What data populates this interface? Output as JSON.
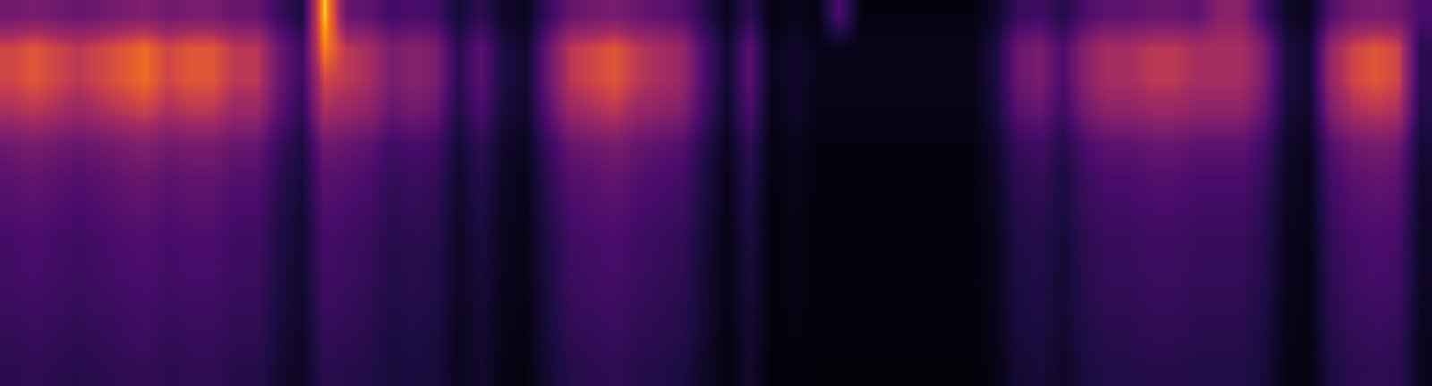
{
  "chart_data": {
    "type": "heatmap",
    "tick_labels": false,
    "zlim": [
      0,
      100
    ],
    "z": [
      [
        42,
        45,
        42,
        39,
        42,
        45,
        48,
        42,
        45,
        45,
        39,
        39,
        24,
        15,
        95,
        39,
        36,
        27,
        30,
        27,
        12,
        21,
        9,
        6,
        24,
        39,
        42,
        45,
        39,
        36,
        33,
        18,
        6,
        21,
        3,
        6,
        3,
        30,
        3,
        3,
        3,
        3,
        3,
        3,
        9,
        24,
        27,
        18,
        30,
        36,
        36,
        39,
        39,
        36,
        50,
        50,
        27,
        9,
        6,
        33,
        42,
        45,
        42,
        30
      ],
      [
        70,
        75,
        70,
        65,
        70,
        75,
        80,
        70,
        75,
        75,
        65,
        65,
        40,
        25,
        85,
        65,
        60,
        45,
        50,
        45,
        20,
        35,
        15,
        10,
        40,
        65,
        70,
        75,
        65,
        60,
        55,
        30,
        10,
        35,
        5,
        10,
        5,
        5,
        5,
        5,
        5,
        5,
        5,
        5,
        15,
        40,
        45,
        30,
        50,
        60,
        60,
        65,
        65,
        60,
        60,
        60,
        45,
        15,
        10,
        55,
        70,
        75,
        70,
        20
      ],
      [
        70,
        75,
        70,
        65,
        70,
        75,
        80,
        70,
        75,
        75,
        65,
        65,
        40,
        25,
        70,
        65,
        60,
        45,
        50,
        45,
        20,
        35,
        15,
        10,
        40,
        65,
        70,
        75,
        65,
        60,
        55,
        30,
        10,
        35,
        5,
        10,
        5,
        5,
        5,
        5,
        5,
        5,
        5,
        5,
        15,
        40,
        45,
        30,
        50,
        60,
        60,
        65,
        65,
        60,
        60,
        60,
        45,
        15,
        10,
        55,
        70,
        75,
        70,
        20
      ],
      [
        60,
        64,
        60,
        55,
        60,
        64,
        68,
        60,
        64,
        64,
        55,
        55,
        34,
        21,
        60,
        55,
        51,
        38,
        43,
        38,
        17,
        30,
        13,
        9,
        34,
        55,
        60,
        64,
        55,
        51,
        47,
        26,
        9,
        30,
        4,
        9,
        4,
        4,
        4,
        4,
        4,
        4,
        4,
        4,
        13,
        34,
        38,
        26,
        43,
        51,
        51,
        55,
        55,
        51,
        51,
        51,
        38,
        13,
        9,
        47,
        60,
        64,
        60,
        17
      ],
      [
        42,
        45,
        42,
        39,
        42,
        45,
        48,
        42,
        45,
        45,
        39,
        39,
        24,
        15,
        42,
        39,
        36,
        27,
        30,
        27,
        12,
        21,
        9,
        6,
        24,
        39,
        42,
        45,
        39,
        36,
        33,
        18,
        6,
        21,
        3,
        6,
        3,
        3,
        3,
        3,
        3,
        3,
        3,
        3,
        9,
        24,
        27,
        18,
        30,
        36,
        36,
        39,
        39,
        36,
        36,
        36,
        27,
        9,
        6,
        33,
        42,
        45,
        42,
        12
      ],
      [
        35,
        38,
        35,
        33,
        35,
        38,
        40,
        35,
        38,
        38,
        33,
        33,
        20,
        13,
        35,
        33,
        30,
        23,
        25,
        23,
        10,
        18,
        8,
        5,
        20,
        33,
        35,
        38,
        33,
        30,
        28,
        15,
        5,
        18,
        3,
        5,
        3,
        3,
        3,
        3,
        3,
        3,
        3,
        3,
        8,
        20,
        23,
        15,
        25,
        30,
        30,
        33,
        33,
        30,
        30,
        30,
        23,
        8,
        5,
        28,
        35,
        38,
        35,
        10
      ],
      [
        32,
        34,
        32,
        29,
        32,
        34,
        36,
        32,
        34,
        34,
        29,
        29,
        18,
        11,
        32,
        29,
        27,
        20,
        23,
        20,
        9,
        16,
        7,
        5,
        18,
        29,
        32,
        34,
        29,
        27,
        25,
        14,
        5,
        16,
        2,
        5,
        2,
        2,
        2,
        2,
        2,
        2,
        2,
        2,
        7,
        18,
        20,
        14,
        23,
        27,
        27,
        29,
        29,
        27,
        27,
        27,
        20,
        7,
        5,
        25,
        32,
        34,
        32,
        9
      ],
      [
        28,
        30,
        28,
        26,
        28,
        30,
        32,
        28,
        30,
        30,
        26,
        26,
        16,
        10,
        28,
        26,
        24,
        18,
        20,
        18,
        8,
        14,
        6,
        4,
        16,
        26,
        28,
        30,
        26,
        24,
        22,
        12,
        4,
        14,
        2,
        4,
        2,
        2,
        2,
        2,
        2,
        2,
        2,
        2,
        6,
        16,
        18,
        12,
        20,
        24,
        24,
        26,
        26,
        24,
        24,
        24,
        18,
        6,
        4,
        22,
        28,
        30,
        28,
        8
      ],
      [
        27,
        29,
        27,
        25,
        27,
        29,
        30,
        27,
        29,
        29,
        25,
        25,
        15,
        10,
        27,
        25,
        23,
        17,
        19,
        17,
        8,
        13,
        6,
        4,
        15,
        25,
        27,
        29,
        25,
        23,
        21,
        11,
        4,
        13,
        2,
        4,
        2,
        2,
        2,
        2,
        2,
        2,
        2,
        2,
        6,
        15,
        17,
        11,
        19,
        23,
        23,
        25,
        25,
        23,
        23,
        23,
        17,
        6,
        4,
        21,
        27,
        29,
        27,
        8
      ],
      [
        25,
        26,
        25,
        23,
        25,
        26,
        28,
        25,
        26,
        26,
        23,
        23,
        14,
        9,
        25,
        23,
        21,
        16,
        18,
        16,
        7,
        12,
        5,
        4,
        14,
        23,
        25,
        26,
        23,
        21,
        19,
        11,
        4,
        12,
        2,
        4,
        2,
        2,
        2,
        2,
        2,
        2,
        2,
        2,
        5,
        14,
        16,
        11,
        18,
        21,
        21,
        23,
        23,
        21,
        21,
        21,
        16,
        5,
        4,
        19,
        25,
        26,
        25,
        7
      ],
      [
        22,
        24,
        22,
        21,
        22,
        24,
        26,
        22,
        24,
        24,
        21,
        21,
        13,
        8,
        22,
        21,
        19,
        14,
        16,
        14,
        6,
        11,
        5,
        3,
        13,
        21,
        22,
        24,
        21,
        19,
        18,
        10,
        3,
        11,
        2,
        3,
        2,
        2,
        2,
        2,
        2,
        2,
        2,
        2,
        5,
        13,
        14,
        10,
        16,
        19,
        19,
        21,
        21,
        19,
        19,
        19,
        14,
        5,
        3,
        18,
        22,
        24,
        22,
        6
      ],
      [
        20,
        21,
        20,
        18,
        20,
        21,
        22,
        20,
        21,
        21,
        18,
        18,
        11,
        7,
        20,
        18,
        17,
        13,
        14,
        13,
        6,
        10,
        4,
        3,
        11,
        18,
        20,
        21,
        18,
        17,
        15,
        8,
        3,
        10,
        1,
        3,
        1,
        1,
        1,
        1,
        1,
        1,
        1,
        1,
        4,
        11,
        13,
        8,
        14,
        17,
        17,
        18,
        18,
        17,
        17,
        17,
        13,
        4,
        3,
        15,
        20,
        21,
        20,
        6
      ]
    ]
  }
}
